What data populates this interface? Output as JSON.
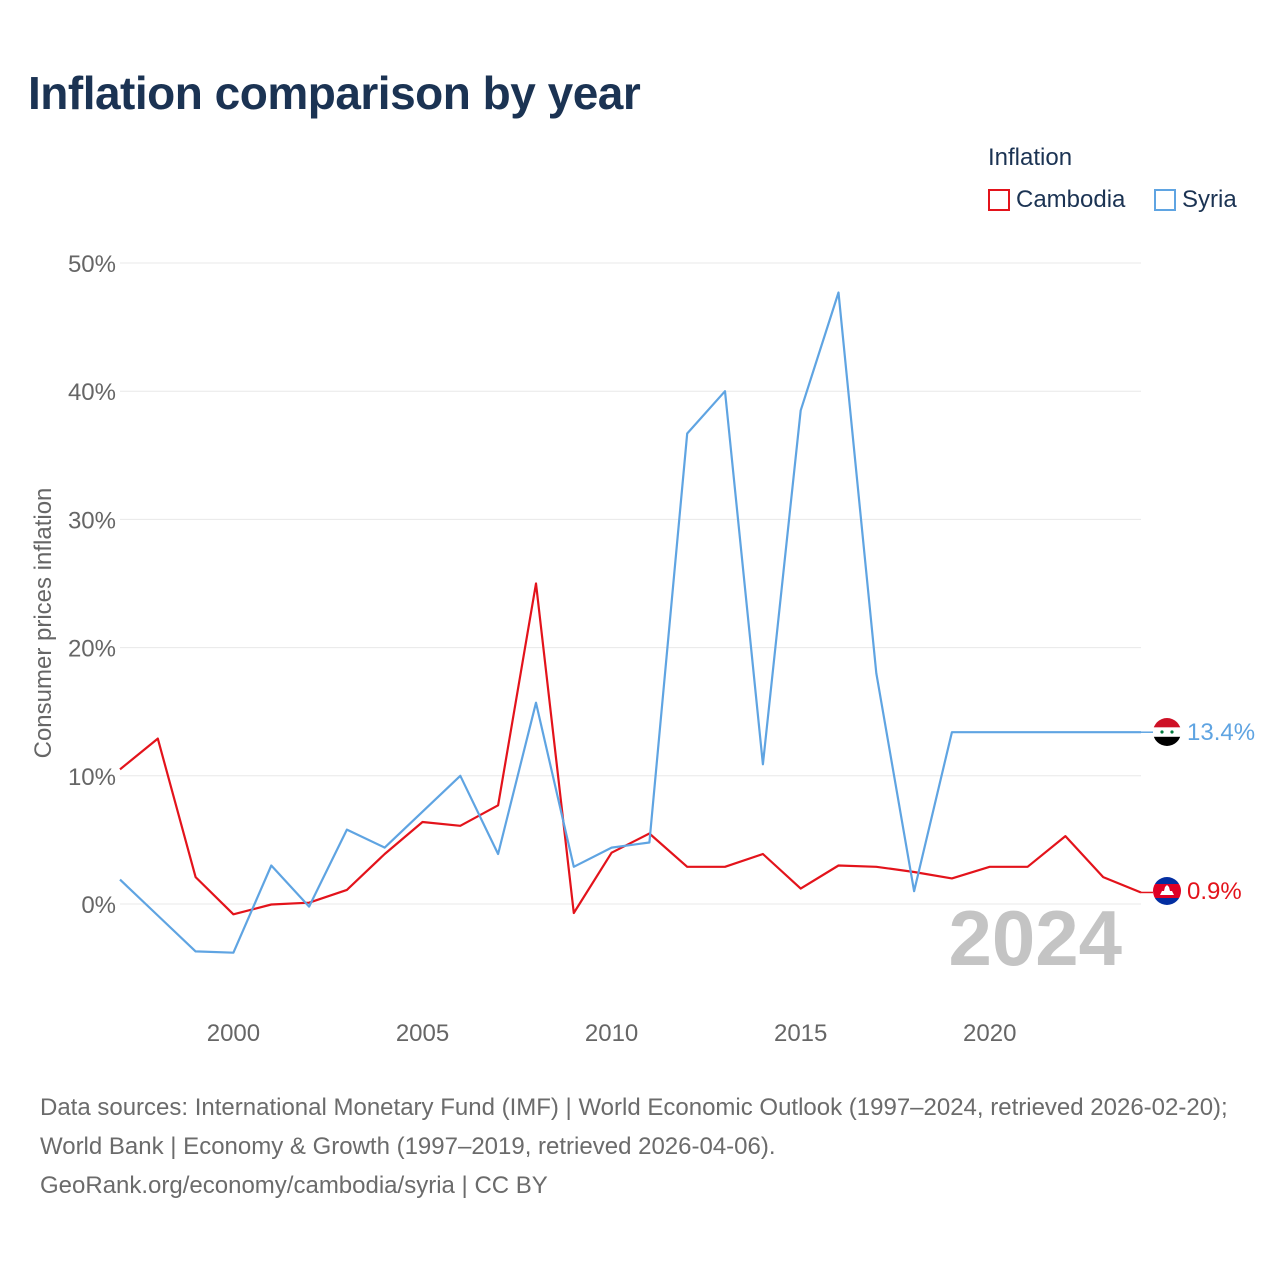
{
  "title": "Inflation comparison by year",
  "legend": {
    "title": "Inflation",
    "items": [
      {
        "label": "Cambodia",
        "color": "#e3131b"
      },
      {
        "label": "Syria",
        "color": "#5fa4e2"
      }
    ]
  },
  "chart_data": {
    "type": "line",
    "title": "Inflation comparison by year",
    "ylabel": "Consumer prices inflation",
    "xlabel": "",
    "ylim": [
      -8,
      50
    ],
    "xlim": [
      1997,
      2024
    ],
    "y_ticks": [
      0,
      10,
      20,
      30,
      40,
      50
    ],
    "y_tick_labels": [
      "0%",
      "10%",
      "20%",
      "30%",
      "40%",
      "50%"
    ],
    "x_ticks": [
      2000,
      2005,
      2010,
      2015,
      2020
    ],
    "x_tick_labels": [
      "2000",
      "2005",
      "2010",
      "2015",
      "2020"
    ],
    "grid": true,
    "year_label": "2024",
    "x": [
      1997,
      1998,
      1999,
      2000,
      2001,
      2002,
      2003,
      2004,
      2005,
      2006,
      2007,
      2008,
      2009,
      2010,
      2011,
      2012,
      2013,
      2014,
      2015,
      2016,
      2017,
      2018,
      2019,
      2020,
      2021,
      2022,
      2023,
      2024
    ],
    "series": [
      {
        "name": "Cambodia",
        "color": "#e3131b",
        "values": [
          10.5,
          12.9,
          2.1,
          -0.8,
          -0.04,
          0.1,
          1.1,
          3.9,
          6.4,
          6.1,
          7.7,
          25.0,
          -0.7,
          4.0,
          5.5,
          2.9,
          2.9,
          3.9,
          1.2,
          3.0,
          2.9,
          2.5,
          2.0,
          2.9,
          2.9,
          5.3,
          2.1,
          0.9
        ],
        "end_label": "0.9%"
      },
      {
        "name": "Syria",
        "color": "#5fa4e2",
        "values": [
          1.9,
          -0.9,
          -3.7,
          -3.8,
          3.0,
          -0.2,
          5.8,
          4.4,
          7.2,
          10.0,
          3.9,
          15.7,
          2.9,
          4.4,
          4.8,
          36.7,
          40.0,
          10.9,
          38.5,
          47.7,
          18.0,
          1.0,
          13.4,
          13.4,
          13.4,
          13.4,
          13.4,
          13.4
        ],
        "end_label": "13.4%"
      }
    ]
  },
  "footer": {
    "line1": "Data sources: International Monetary Fund (IMF) | World Economic Outlook (1997–2024, retrieved 2026-02-20); World Bank | Economy & Growth (1997–2019, retrieved 2026-04-06).",
    "line2": "GeoRank.org/economy/cambodia/syria | CC BY"
  },
  "flags": {
    "syria": "syria-flag-icon",
    "cambodia": "cambodia-flag-icon"
  }
}
